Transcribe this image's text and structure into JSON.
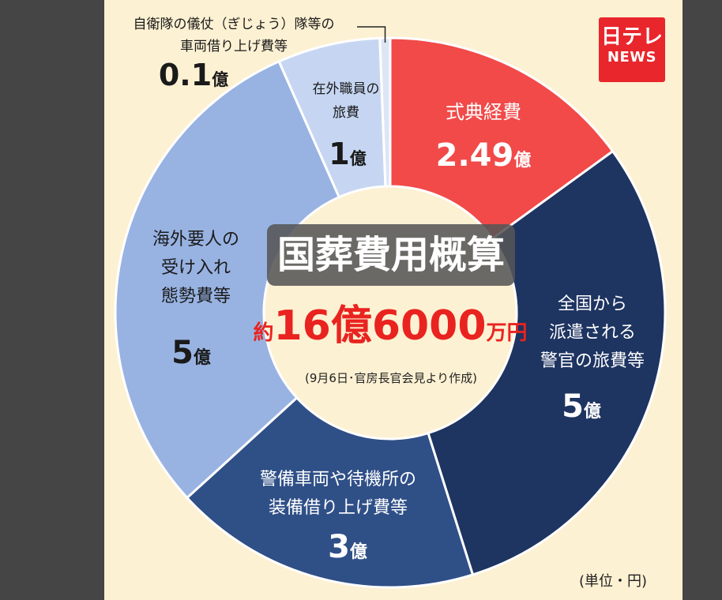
{
  "logo": {
    "line1": "日テレ",
    "line2": "NEWS"
  },
  "center": {
    "title": "国葬費用概算",
    "approx_prefix": "約",
    "total_main": "16億6000",
    "total_unit": "万円",
    "source_note": "(9月6日･官房長官会見より作成)"
  },
  "unit_note": "(単位・円)",
  "colors": {
    "background": "#fdf1d3",
    "accent_red": "#e9231f",
    "dark_navy": "#1e3461",
    "mid_blue": "#2f4f87",
    "light_blue": "#98b3e2",
    "pale_blue": "#c6d6f2",
    "hole": "#fdf1d3"
  },
  "chart_data": {
    "type": "pie",
    "title": "国葬費用概算",
    "total": "約16億6000万円",
    "unit": "(単位・円)",
    "slices": [
      {
        "label_lines": [
          "式典経費"
        ],
        "value_text": "2.49",
        "unit_text": "億",
        "value": 2.49,
        "color": "#f14a49",
        "text_color": "#ffffff"
      },
      {
        "label_lines": [
          "全国から",
          "派遣される",
          "警官の旅費等"
        ],
        "value_text": "5",
        "unit_text": "億",
        "value": 5,
        "color": "#1e3461",
        "text_color": "#ffffff"
      },
      {
        "label_lines": [
          "警備車両や待機所の",
          "装備借り上げ費等"
        ],
        "value_text": "3",
        "unit_text": "億",
        "value": 3,
        "color": "#2f4f87",
        "text_color": "#ffffff"
      },
      {
        "label_lines": [
          "海外要人の",
          "受け入れ",
          "態勢費等"
        ],
        "value_text": "5",
        "unit_text": "億",
        "value": 5,
        "color": "#98b3e2",
        "text_color": "#1a1a1a"
      },
      {
        "label_lines": [
          "在外職員の",
          "旅費"
        ],
        "value_text": "1",
        "unit_text": "億",
        "value": 1,
        "color": "#c6d6f2",
        "text_color": "#1a1a1a"
      },
      {
        "label_lines": [
          "自衛隊の儀仗（ぎじょう）隊等の",
          "車両借り上げ費等"
        ],
        "value_text": "0.1",
        "unit_text": "億",
        "value": 0.1,
        "color": "#dde6f5",
        "text_color": "#1a1a1a",
        "callout": true
      }
    ]
  }
}
